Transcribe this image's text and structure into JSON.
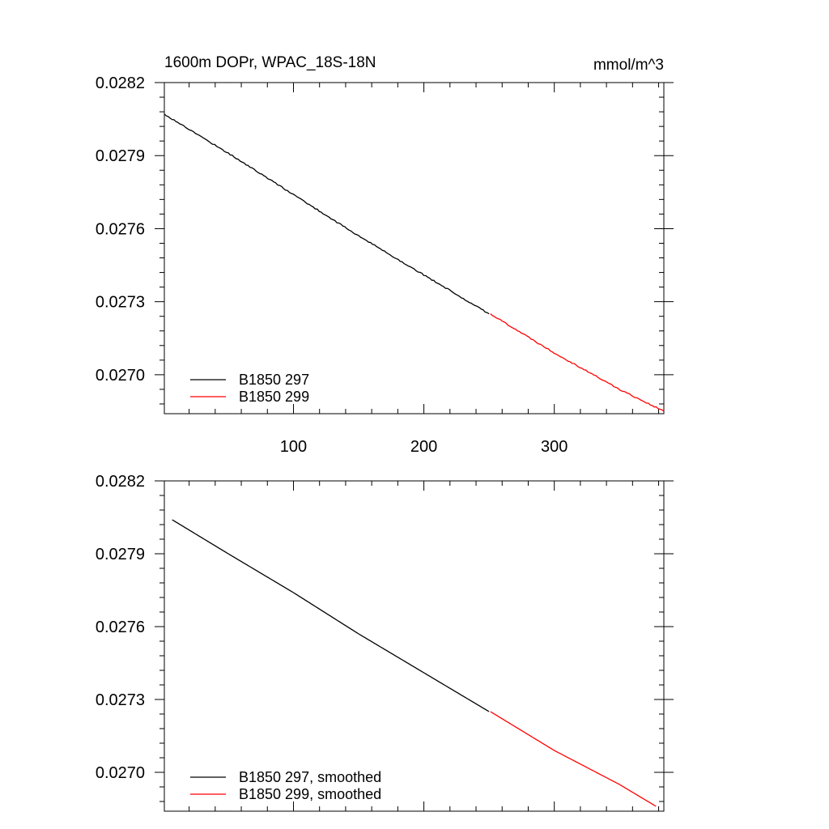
{
  "chart_data": [
    {
      "type": "line",
      "title": "1600m DOPr, WPAC_18S-18N",
      "units": "mmol/m^3",
      "xlim": [
        1,
        384
      ],
      "ylim": [
        0.02684,
        0.0282
      ],
      "xticks": [
        100,
        200,
        300
      ],
      "xtick_labels": [
        "100",
        "200",
        "300"
      ],
      "yticks": [
        0.027,
        0.0273,
        0.0276,
        0.0279,
        0.0282
      ],
      "ytick_labels": [
        "0.0270",
        "0.0273",
        "0.0276",
        "0.0279",
        "0.0282"
      ],
      "legend_position": "bottom-left",
      "series": [
        {
          "name": "B1850 297",
          "color": "#000000",
          "x": [
            1,
            50,
            100,
            150,
            200,
            250
          ],
          "y": [
            0.02807,
            0.02791,
            0.02774,
            0.02757,
            0.02741,
            0.02725
          ]
        },
        {
          "name": "B1850 299",
          "color": "#ff0000",
          "x": [
            251,
            300,
            350,
            384
          ],
          "y": [
            0.02725,
            0.02709,
            0.02694,
            0.02685
          ]
        }
      ]
    },
    {
      "type": "line",
      "xlim": [
        1,
        384
      ],
      "ylim": [
        0.02684,
        0.0282
      ],
      "xticks": [
        100,
        200,
        300
      ],
      "yticks": [
        0.027,
        0.0273,
        0.0276,
        0.0279,
        0.0282
      ],
      "ytick_labels": [
        "0.0270",
        "0.0273",
        "0.0276",
        "0.0279",
        "0.0282"
      ],
      "legend_position": "bottom-left",
      "series": [
        {
          "name": "B1850 297, smoothed",
          "color": "#000000",
          "x": [
            7,
            50,
            100,
            150,
            200,
            250
          ],
          "y": [
            0.02804,
            0.0279,
            0.02774,
            0.02757,
            0.02741,
            0.02725
          ]
        },
        {
          "name": "B1850 299, smoothed",
          "color": "#ff0000",
          "x": [
            251,
            300,
            350,
            378
          ],
          "y": [
            0.02725,
            0.02709,
            0.02695,
            0.02686
          ]
        }
      ]
    }
  ]
}
